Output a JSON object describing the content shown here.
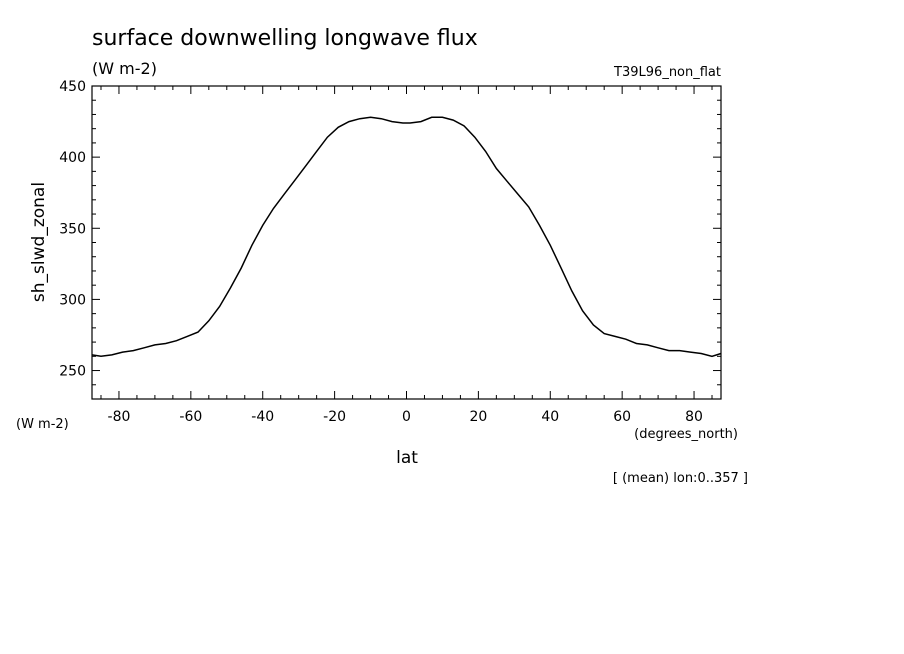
{
  "chart_data": {
    "type": "line",
    "title": "surface downwelling longwave flux",
    "title_units": "(W m-2)",
    "run_label": "T39L96_non_flat",
    "ylabel": "sh_slwd_zonal",
    "y_units": "(W m-2)",
    "xlabel": "lat",
    "x_units": "(degrees_north)",
    "annotation": "[ (mean) lon:0..357 ]",
    "xlim": [
      -87.5,
      87.5
    ],
    "ylim": [
      230,
      450
    ],
    "x_ticks": [
      -80,
      -60,
      -40,
      -20,
      0,
      20,
      40,
      60,
      80
    ],
    "x_tick_labels": [
      "-80",
      "-60",
      "-40",
      "-20",
      "0",
      "20",
      "40",
      "60",
      "80"
    ],
    "y_ticks": [
      250,
      300,
      350,
      400,
      450
    ],
    "y_tick_labels": [
      "250",
      "300",
      "350",
      "400",
      "450"
    ],
    "grid": false,
    "series": [
      {
        "color": "#000000",
        "x": [
          -87.5,
          -85,
          -82,
          -79,
          -76,
          -73,
          -70,
          -67,
          -64,
          -61,
          -58,
          -55,
          -52,
          -49,
          -46,
          -43,
          -40,
          -37,
          -34,
          -31,
          -28,
          -25,
          -22,
          -19,
          -16,
          -13,
          -10,
          -7,
          -4,
          -1,
          1,
          4,
          7,
          10,
          13,
          16,
          19,
          22,
          25,
          28,
          31,
          34,
          37,
          40,
          43,
          46,
          49,
          52,
          55,
          58,
          61,
          64,
          67,
          70,
          73,
          76,
          79,
          82,
          85,
          87.5
        ],
        "y": [
          261,
          260,
          261,
          263,
          264,
          266,
          268,
          269,
          271,
          274,
          277,
          285,
          295,
          308,
          322,
          338,
          352,
          364,
          374,
          384,
          394,
          404,
          414,
          421,
          425,
          427,
          428,
          427,
          425,
          424,
          424,
          425,
          428,
          428,
          426,
          422,
          414,
          404,
          392,
          383,
          374,
          365,
          352,
          338,
          322,
          306,
          292,
          282,
          276,
          274,
          272,
          269,
          268,
          266,
          264,
          264,
          263,
          262,
          260,
          262
        ]
      }
    ]
  }
}
